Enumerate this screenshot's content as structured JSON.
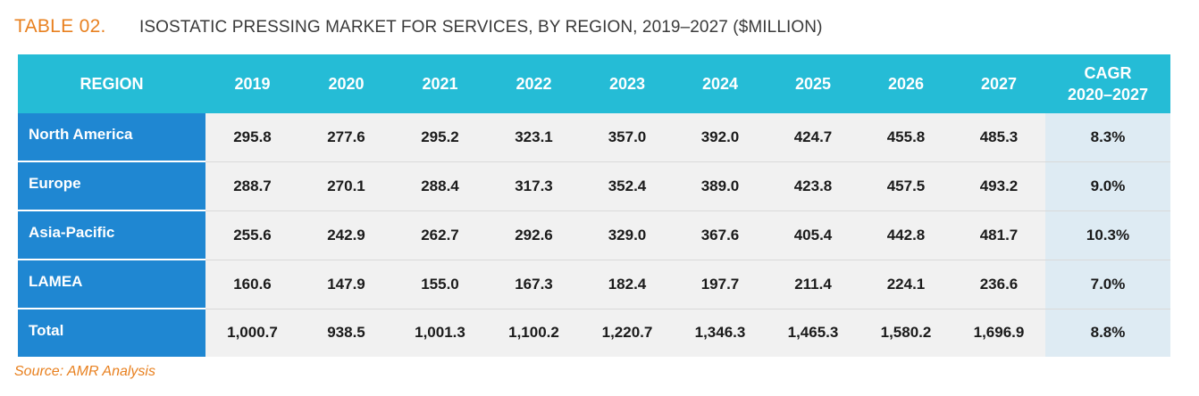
{
  "header": {
    "label": "TABLE 02.",
    "title": "ISOSTATIC PRESSING MARKET FOR SERVICES, BY REGION, 2019–2027 ($MILLION)"
  },
  "table": {
    "columns": [
      "REGION",
      "2019",
      "2020",
      "2021",
      "2022",
      "2023",
      "2024",
      "2025",
      "2026",
      "2027",
      "CAGR",
      "2020–2027"
    ],
    "rows": [
      {
        "region": "North America",
        "values": [
          "295.8",
          "277.6",
          "295.2",
          "323.1",
          "357.0",
          "392.0",
          "424.7",
          "455.8",
          "485.3"
        ],
        "cagr": "8.3%"
      },
      {
        "region": "Europe",
        "values": [
          "288.7",
          "270.1",
          "288.4",
          "317.3",
          "352.4",
          "389.0",
          "423.8",
          "457.5",
          "493.2"
        ],
        "cagr": "9.0%"
      },
      {
        "region": "Asia-Pacific",
        "values": [
          "255.6",
          "242.9",
          "262.7",
          "292.6",
          "329.0",
          "367.6",
          "405.4",
          "442.8",
          "481.7"
        ],
        "cagr": "10.3%"
      },
      {
        "region": "LAMEA",
        "values": [
          "160.6",
          "147.9",
          "155.0",
          "167.3",
          "182.4",
          "197.7",
          "211.4",
          "224.1",
          "236.6"
        ],
        "cagr": "7.0%"
      },
      {
        "region": "Total",
        "values": [
          "1,000.7",
          "938.5",
          "1,001.3",
          "1,100.2",
          "1,220.7",
          "1,346.3",
          "1,465.3",
          "1,580.2",
          "1,696.9"
        ],
        "cagr": "8.8%"
      }
    ]
  },
  "footer": {
    "source": "Source: AMR Analysis"
  },
  "colors": {
    "accent_orange": "#e8801f",
    "header_cyan": "#25bcd6",
    "region_blue": "#1f87d2",
    "cell_gray": "#f1f1f1",
    "cagr_bg": "#deebf3"
  }
}
